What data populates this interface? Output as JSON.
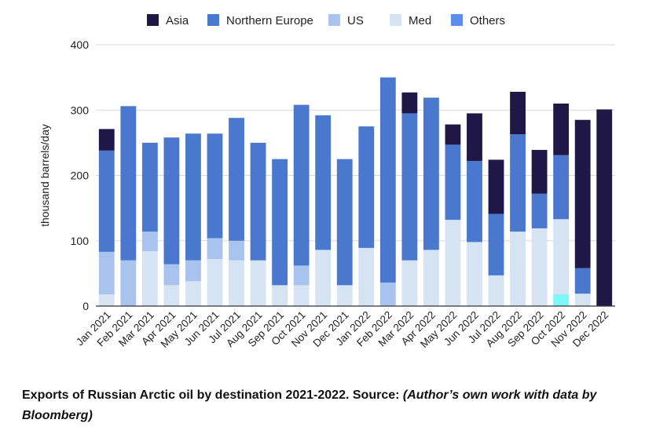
{
  "chart_data": {
    "type": "bar",
    "stacked": true,
    "ylabel": "thousand barrels/day",
    "ylim": [
      0,
      400
    ],
    "yticks": [
      0,
      100,
      200,
      300,
      400
    ],
    "grid": true,
    "legend_position": "top",
    "categories": [
      "Jan 2021",
      "Feb 2021",
      "Mar 2021",
      "Apr 2021",
      "May 2021",
      "Jun 2021",
      "Jul 2021",
      "Aug 2021",
      "Sep 2021",
      "Oct 2021",
      "Nov 2021",
      "Dec 2021",
      "Jan 2022",
      "Feb 2022",
      "Mar 2022",
      "Apr 2022",
      "May 2022",
      "Jun 2022",
      "Jul 2022",
      "Aug 2022",
      "Sep 2022",
      "Oct 2022",
      "Nov 2022",
      "Dec 2022"
    ],
    "series": [
      {
        "name": "Others",
        "color": "#5b8def",
        "values": [
          0,
          0,
          0,
          0,
          0,
          0,
          0,
          0,
          0,
          0,
          0,
          0,
          0,
          0,
          0,
          0,
          0,
          0,
          0,
          0,
          0,
          18,
          0,
          0
        ]
      },
      {
        "name": "Med",
        "color": "#d6e3f3",
        "values": [
          18,
          0,
          84,
          32,
          38,
          72,
          70,
          70,
          32,
          32,
          86,
          32,
          89,
          0,
          70,
          86,
          132,
          98,
          47,
          114,
          119,
          115,
          19,
          0
        ]
      },
      {
        "name": "US",
        "color": "#a8c3ee",
        "values": [
          65,
          70,
          30,
          32,
          32,
          32,
          30,
          0,
          0,
          30,
          0,
          0,
          0,
          36,
          0,
          0,
          0,
          0,
          0,
          0,
          0,
          0,
          0,
          0
        ]
      },
      {
        "name": "Northern Europe",
        "color": "#4a78cf",
        "values": [
          155,
          236,
          136,
          194,
          194,
          160,
          188,
          180,
          193,
          246,
          206,
          193,
          186,
          314,
          225,
          233,
          115,
          124,
          94,
          149,
          53,
          98,
          39,
          0
        ]
      },
      {
        "name": "Asia",
        "color": "#1f1847",
        "values": [
          33,
          0,
          0,
          0,
          0,
          0,
          0,
          0,
          0,
          0,
          0,
          0,
          0,
          0,
          32,
          0,
          31,
          73,
          83,
          65,
          67,
          79,
          227,
          301
        ]
      }
    ],
    "legend_order": [
      "Asia",
      "Northern Europe",
      "US",
      "Med",
      "Others"
    ]
  },
  "caption": {
    "main": "Exports of Russian Arctic oil by destination 2021-2022. Source: ",
    "source_detail": "(Author’s own work with data by Bloomberg)"
  },
  "colors": {
    "grid": "#d9d9d9",
    "axis": "#333333",
    "others_fill": "#7df7f9"
  }
}
